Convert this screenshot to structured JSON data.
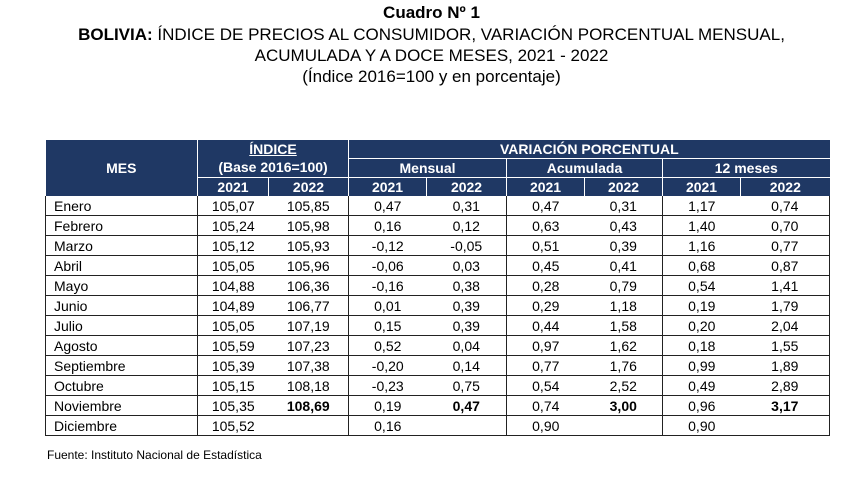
{
  "title": {
    "line1": "Cuadro Nº 1",
    "line2_bold": "BOLIVIA:",
    "line2_rest": " ÍNDICE DE PRECIOS AL CONSUMIDOR, VARIACIÓN PORCENTUAL MENSUAL,",
    "line3": "ACUMULADA Y A DOCE MESES, 2021 - 2022",
    "line4": "(Índice 2016=100 y en porcentaje)"
  },
  "header": {
    "mes": "MES",
    "indice": "ÍNDICE",
    "base": "(Base 2016=100)",
    "variacion": "VARIACIÓN PORCENTUAL",
    "mensual": "Mensual",
    "acumulada": "Acumulada",
    "doce": "12 meses",
    "y2021": "2021",
    "y2022": "2022"
  },
  "rows": [
    {
      "mes": "Enero",
      "v": [
        "105,07",
        "105,85",
        "0,47",
        "0,31",
        "0,47",
        "0,31",
        "1,17",
        "0,74"
      ]
    },
    {
      "mes": "Febrero",
      "v": [
        "105,24",
        "105,98",
        "0,16",
        "0,12",
        "0,63",
        "0,43",
        "1,40",
        "0,70"
      ]
    },
    {
      "mes": "Marzo",
      "v": [
        "105,12",
        "105,93",
        "-0,12",
        "-0,05",
        "0,51",
        "0,39",
        "1,16",
        "0,77"
      ]
    },
    {
      "mes": "Abril",
      "v": [
        "105,05",
        "105,96",
        "-0,06",
        "0,03",
        "0,45",
        "0,41",
        "0,68",
        "0,87"
      ]
    },
    {
      "mes": "Mayo",
      "v": [
        "104,88",
        "106,36",
        "-0,16",
        "0,38",
        "0,28",
        "0,79",
        "0,54",
        "1,41"
      ]
    },
    {
      "mes": "Junio",
      "v": [
        "104,89",
        "106,77",
        "0,01",
        "0,39",
        "0,29",
        "1,18",
        "0,19",
        "1,79"
      ]
    },
    {
      "mes": "Julio",
      "v": [
        "105,05",
        "107,19",
        "0,15",
        "0,39",
        "0,44",
        "1,58",
        "0,20",
        "2,04"
      ]
    },
    {
      "mes": "Agosto",
      "v": [
        "105,59",
        "107,23",
        "0,52",
        "0,04",
        "0,97",
        "1,62",
        "0,18",
        "1,55"
      ]
    },
    {
      "mes": "Septiembre",
      "v": [
        "105,39",
        "107,38",
        "-0,20",
        "0,14",
        "0,77",
        "1,76",
        "0,99",
        "1,89"
      ]
    },
    {
      "mes": "Octubre",
      "v": [
        "105,15",
        "108,18",
        "-0,23",
        "0,75",
        "0,54",
        "2,52",
        "0,49",
        "2,89"
      ]
    },
    {
      "mes": "Noviembre",
      "v": [
        "105,35",
        "108,69",
        "0,19",
        "0,47",
        "0,74",
        "3,00",
        "0,96",
        "3,17"
      ]
    },
    {
      "mes": "Diciembre",
      "v": [
        "105,52",
        "",
        "0,16",
        "",
        "0,90",
        "",
        "0,90",
        ""
      ]
    }
  ],
  "source": "Fuente: Instituto Nacional de Estadística"
}
